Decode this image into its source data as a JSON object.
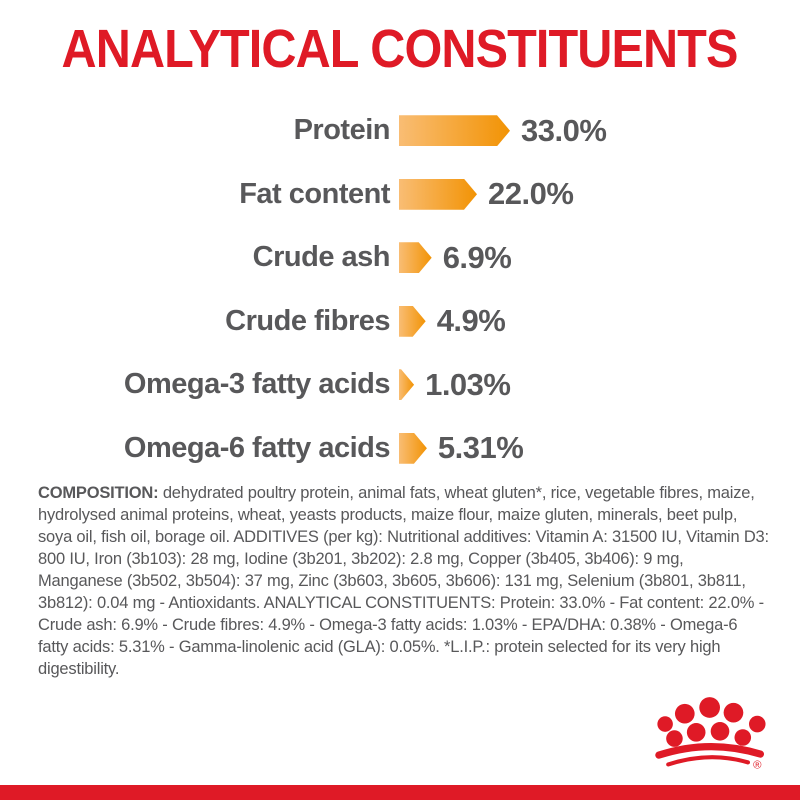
{
  "page": {
    "accent_red": "#DF1A26",
    "text_gray": "#58585A",
    "bar_gradient_start": "#F9BD74",
    "bar_gradient_end": "#F29304",
    "background": "#FFFFFF"
  },
  "header": {
    "title": "ANALYTICAL CONSTITUENTS"
  },
  "chart_data": {
    "type": "bar",
    "orientation": "horizontal",
    "title": "ANALYTICAL CONSTITUENTS",
    "categories": [
      "Protein",
      "Fat content",
      "Crude ash",
      "Crude fibres",
      "Omega-3 fatty acids",
      "Omega-6 fatty acids"
    ],
    "values": [
      33.0,
      22.0,
      6.9,
      4.9,
      1.03,
      5.31
    ],
    "value_labels": [
      "33.0%",
      "22.0%",
      "6.9%",
      "4.9%",
      "1.03%",
      "5.31%"
    ],
    "unit": "%",
    "xlabel": "",
    "ylabel": "",
    "grid": false,
    "legend_position": "none",
    "bar_shape": "arrow-right",
    "bar_color_start": "#F9BD74",
    "bar_color_end": "#F29304"
  },
  "composition": {
    "heading": "COMPOSITION:",
    "body": "dehydrated poultry protein, animal fats, wheat gluten*, rice, vegetable fibres, maize, hydrolysed animal proteins, wheat, yeasts products, maize flour, maize gluten, minerals, beet pulp, soya oil, fish oil, borage oil. ADDITIVES (per kg): Nutritional additives: Vitamin A: 31500 IU, Vitamin D3: 800 IU, Iron (3b103): 28 mg, Iodine (3b201, 3b202): 2.8 mg, Copper (3b405, 3b406): 9 mg, Manganese (3b502, 3b504): 37 mg, Zinc (3b603, 3b605, 3b606): 131 mg, Selenium (3b801, 3b811, 3b812): 0.04 mg - Antioxidants. ANALYTICAL CONSTITUENTS: Protein: 33.0% - Fat content: 22.0% - Crude ash: 6.9% - Crude fibres: 4.9% - Omega-3 fatty acids: 1.03% - EPA/DHA: 0.38% - Omega-6 fatty acids: 5.31% - Gamma-linolenic acid (GLA): 0.05%. *L.I.P.: protein selected for its very high digestibility."
  },
  "footer": {
    "logo_name": "royal-canin-crown",
    "registered_mark": "®"
  }
}
